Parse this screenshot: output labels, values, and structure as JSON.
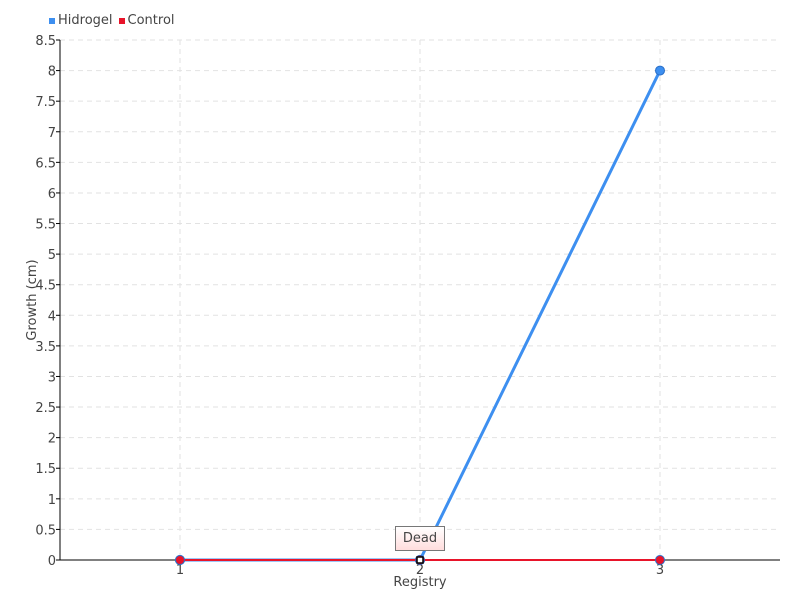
{
  "chart_data": {
    "type": "line",
    "categories": [
      "1",
      "2",
      "3"
    ],
    "series": [
      {
        "name": "Hidrogel",
        "values": [
          0,
          0,
          8
        ],
        "color": "#3d8ff0"
      },
      {
        "name": "Control",
        "values": [
          0,
          0,
          0
        ],
        "color": "#e8142a"
      }
    ],
    "xlabel": "Registry",
    "ylabel": "Growth (cm)",
    "ylim": [
      0,
      8.5
    ],
    "ytick_step": 0.5,
    "yticks": [
      "0",
      "0.5",
      "1",
      "1.5",
      "2",
      "2.5",
      "3",
      "3.5",
      "4",
      "4.5",
      "5",
      "5.5",
      "6",
      "6.5",
      "7",
      "7.5",
      "8",
      "8.5"
    ],
    "grid": true,
    "legend_position": "top-left",
    "tooltip": {
      "category": "2",
      "text": "Dead"
    }
  }
}
